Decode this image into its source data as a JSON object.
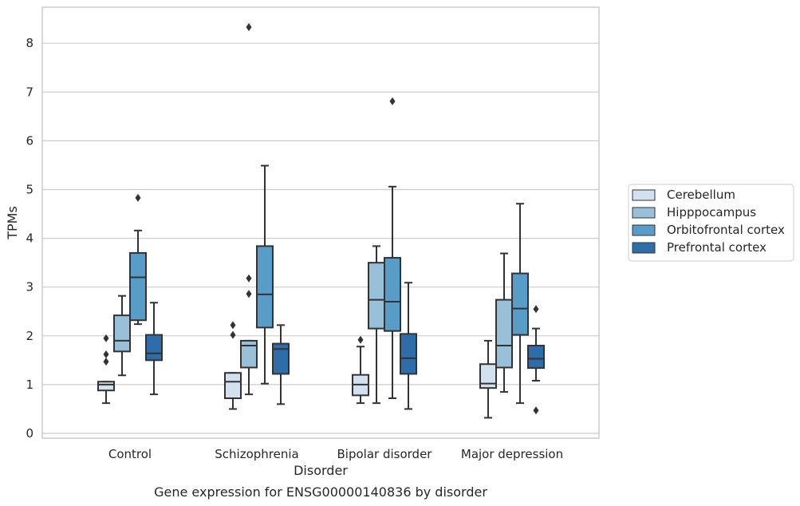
{
  "chart_data": {
    "type": "box",
    "xlabel": "Disorder",
    "ylabel": "TPMs",
    "caption": "Gene expression for ENSG00000140836 by disorder",
    "ylim": [
      -0.1,
      8.75
    ],
    "yticks": [
      "0",
      "1",
      "2",
      "3",
      "4",
      "5",
      "6",
      "7",
      "8"
    ],
    "grid": true,
    "legend_position": "right",
    "categories": [
      "Control",
      "Schizophrenia",
      "Bipolar disorder",
      "Major depression"
    ],
    "series": [
      {
        "name": "Cerebellum",
        "color": "#d1e1f0",
        "boxes": [
          {
            "whisker_low": 0.62,
            "q1": 0.88,
            "median": 1.0,
            "q3": 1.06,
            "whisker_high": 1.06,
            "outliers": [
              1.95,
              1.62,
              1.47
            ]
          },
          {
            "whisker_low": 0.5,
            "q1": 0.72,
            "median": 1.06,
            "q3": 1.24,
            "whisker_high": 1.24,
            "outliers": [
              2.22,
              2.02
            ]
          },
          {
            "whisker_low": 0.62,
            "q1": 0.78,
            "median": 1.0,
            "q3": 1.2,
            "whisker_high": 1.78,
            "outliers": [
              1.92
            ]
          },
          {
            "whisker_low": 0.32,
            "q1": 0.93,
            "median": 1.02,
            "q3": 1.42,
            "whisker_high": 1.9,
            "outliers": []
          }
        ]
      },
      {
        "name": "Hipppocampus",
        "color": "#98c0da",
        "boxes": [
          {
            "whisker_low": 1.19,
            "q1": 1.68,
            "median": 1.9,
            "q3": 2.42,
            "whisker_high": 2.82,
            "outliers": []
          },
          {
            "whisker_low": 0.8,
            "q1": 1.35,
            "median": 1.8,
            "q3": 1.9,
            "whisker_high": 1.9,
            "outliers": [
              3.18,
              2.86,
              8.33
            ]
          },
          {
            "whisker_low": 0.62,
            "q1": 2.15,
            "median": 2.74,
            "q3": 3.5,
            "whisker_high": 3.84,
            "outliers": []
          },
          {
            "whisker_low": 0.85,
            "q1": 1.35,
            "median": 1.8,
            "q3": 2.74,
            "whisker_high": 3.69,
            "outliers": []
          }
        ]
      },
      {
        "name": "Orbitofrontal cortex",
        "color": "#5a9cc8",
        "boxes": [
          {
            "whisker_low": 2.24,
            "q1": 2.32,
            "median": 3.2,
            "q3": 3.7,
            "whisker_high": 4.16,
            "outliers": [
              4.83
            ]
          },
          {
            "whisker_low": 1.02,
            "q1": 2.17,
            "median": 2.85,
            "q3": 3.84,
            "whisker_high": 5.49,
            "outliers": []
          },
          {
            "whisker_low": 0.72,
            "q1": 2.1,
            "median": 2.7,
            "q3": 3.6,
            "whisker_high": 5.06,
            "outliers": [
              6.81
            ]
          },
          {
            "whisker_low": 0.62,
            "q1": 2.02,
            "median": 2.56,
            "q3": 3.28,
            "whisker_high": 4.71,
            "outliers": []
          }
        ]
      },
      {
        "name": "Prefrontal cortex",
        "color": "#2d6da9",
        "boxes": [
          {
            "whisker_low": 0.8,
            "q1": 1.5,
            "median": 1.64,
            "q3": 2.02,
            "whisker_high": 2.68,
            "outliers": []
          },
          {
            "whisker_low": 0.6,
            "q1": 1.22,
            "median": 1.73,
            "q3": 1.84,
            "whisker_high": 2.22,
            "outliers": []
          },
          {
            "whisker_low": 0.5,
            "q1": 1.22,
            "median": 1.54,
            "q3": 2.04,
            "whisker_high": 3.09,
            "outliers": []
          },
          {
            "whisker_low": 1.08,
            "q1": 1.34,
            "median": 1.53,
            "q3": 1.8,
            "whisker_high": 2.15,
            "outliers": [
              2.55,
              0.47
            ]
          }
        ]
      }
    ]
  }
}
